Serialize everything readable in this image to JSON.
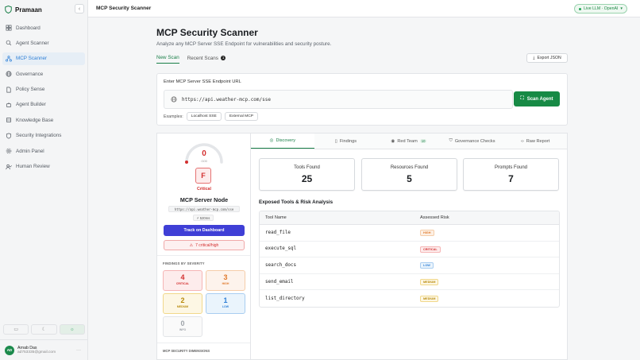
{
  "app": {
    "name": "Pramaan"
  },
  "sidebar": {
    "items": [
      {
        "label": "Dashboard",
        "icon": "grid-icon"
      },
      {
        "label": "Agent Scanner",
        "icon": "search-icon"
      },
      {
        "label": "MCP Scanner",
        "icon": "network-icon",
        "active": true
      },
      {
        "label": "Governance",
        "icon": "globe-icon"
      },
      {
        "label": "Policy Sense",
        "icon": "document-icon"
      },
      {
        "label": "Agent Builder",
        "icon": "bot-icon"
      },
      {
        "label": "Knowledge Base",
        "icon": "database-icon"
      },
      {
        "label": "Security Integrations",
        "icon": "shield-icon"
      },
      {
        "label": "Admin Panel",
        "icon": "gear-icon"
      },
      {
        "label": "Human Review",
        "icon": "user-check-icon"
      }
    ]
  },
  "user": {
    "initials": "AD",
    "name": "Arnab Das",
    "email": "ad753335@gmail.com"
  },
  "topbar": {
    "title": "MCP Security Scanner",
    "llm_status": "Live LLM · OpenAI"
  },
  "page": {
    "title": "MCP Security Scanner",
    "subtitle": "Analyze any MCP Server SSE Endpoint for vulnerabilities and security posture.",
    "tabs": {
      "new_scan": "New Scan",
      "recent_scans": "Recent Scans",
      "recent_count": "1"
    },
    "export_label": "Export JSON"
  },
  "scan": {
    "label": "Enter MCP Server SSE Endpoint URL",
    "url": "https://api.weather-mcp.com/sse",
    "button": "Scan Agent",
    "examples_label": "Examples:",
    "examples": [
      "Localhost SSE",
      "External MCP"
    ]
  },
  "result": {
    "score": "0",
    "score_label": "/100",
    "score_fraction": 0,
    "grade": "F",
    "grade_label": "Critical",
    "server_name": "MCP Server Node",
    "server_url": "https://api.weather-mcp.com/sse",
    "latency": "520ms",
    "track_label": "Track on Dashboard",
    "critical_summary": "7 critical/high",
    "severity_title": "FINDINGS BY SEVERITY",
    "severity": {
      "critical": {
        "count": "4",
        "label": "CRITICAL"
      },
      "high": {
        "count": "3",
        "label": "HIGH"
      },
      "medium": {
        "count": "2",
        "label": "MEDIUM"
      },
      "low": {
        "count": "1",
        "label": "LOW"
      },
      "info": {
        "count": "0",
        "label": "INFO"
      }
    },
    "dimensions_title": "MCP SECURITY DIMENSIONS"
  },
  "detail": {
    "tabs": {
      "discovery": "Discovery",
      "findings": "Findings",
      "red_team": "Red Team",
      "red_team_count": "10",
      "governance": "Governance Checks",
      "raw": "Raw Report"
    },
    "stats": {
      "tools": {
        "label": "Tools Found",
        "value": "25"
      },
      "resources": {
        "label": "Resources Found",
        "value": "5"
      },
      "prompts": {
        "label": "Prompts Found",
        "value": "7"
      }
    },
    "tools_heading": "Exposed Tools & Risk Analysis",
    "columns": {
      "name": "Tool Name",
      "risk": "Assessed Risk"
    },
    "tools": [
      {
        "name": "read_file",
        "risk": "HIGH"
      },
      {
        "name": "execute_sql",
        "risk": "CRITICAL"
      },
      {
        "name": "search_docs",
        "risk": "LOW"
      },
      {
        "name": "send_email",
        "risk": "MEDIUM"
      },
      {
        "name": "list_directory",
        "risk": "MEDIUM"
      }
    ]
  }
}
